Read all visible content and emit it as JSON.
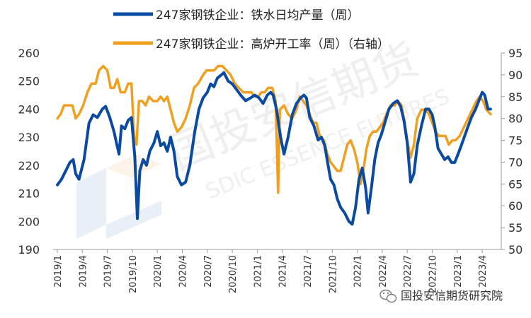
{
  "chart_data": {
    "type": "line",
    "title": "",
    "xlabel": "",
    "ylabel_left": "",
    "ylabel_right": "",
    "ylim_left": [
      190,
      260
    ],
    "ylim_right": [
      50,
      95
    ],
    "yticks_left": [
      "190",
      "200",
      "210",
      "220",
      "230",
      "240",
      "250",
      "260"
    ],
    "yticks_right": [
      "50",
      "55",
      "60",
      "65",
      "70",
      "75",
      "80",
      "85",
      "90",
      "95"
    ],
    "x_tick_labels": [
      "2019/1",
      "2019/4",
      "2019/7",
      "2019/10",
      "2020/1",
      "2020/4",
      "2020/7",
      "2020/10",
      "2021/1",
      "2021/4",
      "2021/7",
      "2021/10",
      "2022/1",
      "2022/4",
      "2022/7",
      "2022/10",
      "2023/1",
      "2023/4"
    ],
    "grid": false,
    "legend_position": "top",
    "series": [
      {
        "name": "247家钢铁企业：铁水日均产量（周）",
        "axis": "left",
        "color": "#0a4aa0",
        "points": [
          [
            0,
            213
          ],
          [
            0.5,
            215
          ],
          [
            1,
            218
          ],
          [
            1.5,
            221
          ],
          [
            1.9,
            222
          ],
          [
            2.2,
            217
          ],
          [
            2.6,
            215
          ],
          [
            3.2,
            222
          ],
          [
            3.8,
            235
          ],
          [
            4.3,
            238
          ],
          [
            4.8,
            237
          ],
          [
            5.4,
            240
          ],
          [
            5.8,
            241
          ],
          [
            6.3,
            237
          ],
          [
            6.8,
            232
          ],
          [
            7.1,
            228
          ],
          [
            7.4,
            224
          ],
          [
            7.7,
            234
          ],
          [
            8.1,
            233
          ],
          [
            8.5,
            236
          ],
          [
            8.9,
            237
          ],
          [
            9.3,
            223
          ],
          [
            9.6,
            201
          ],
          [
            9.9,
            218
          ],
          [
            10.3,
            222
          ],
          [
            10.7,
            220
          ],
          [
            11.1,
            225
          ],
          [
            11.6,
            228
          ],
          [
            12,
            232
          ],
          [
            12.4,
            227
          ],
          [
            12.8,
            228
          ],
          [
            13.2,
            225
          ],
          [
            13.6,
            230
          ],
          [
            14,
            225
          ],
          [
            14.4,
            216
          ],
          [
            14.9,
            213
          ],
          [
            15.4,
            214
          ],
          [
            15.9,
            220
          ],
          [
            16.5,
            232
          ],
          [
            17,
            240
          ],
          [
            17.5,
            244
          ],
          [
            18,
            246
          ],
          [
            18.4,
            249
          ],
          [
            18.8,
            248
          ],
          [
            19.2,
            251
          ],
          [
            19.6,
            252
          ],
          [
            20,
            253
          ],
          [
            20.5,
            250
          ],
          [
            21,
            249
          ],
          [
            21.5,
            247
          ],
          [
            22,
            245
          ],
          [
            22.6,
            243
          ],
          [
            23.2,
            244
          ],
          [
            23.7,
            245
          ],
          [
            24.2,
            244
          ],
          [
            24.7,
            242
          ],
          [
            25.2,
            245
          ],
          [
            25.6,
            246
          ],
          [
            25.9,
            245
          ],
          [
            26.3,
            240
          ],
          [
            26.8,
            230
          ],
          [
            27.2,
            224
          ],
          [
            27.7,
            230
          ],
          [
            28.2,
            238
          ],
          [
            28.7,
            242
          ],
          [
            29.2,
            244
          ],
          [
            29.6,
            245
          ],
          [
            29.9,
            244
          ],
          [
            30.3,
            237
          ],
          [
            30.8,
            234
          ],
          [
            31.3,
            229
          ],
          [
            31.7,
            230
          ],
          [
            32.1,
            227
          ],
          [
            32.5,
            220
          ],
          [
            32.8,
            215
          ],
          [
            33.2,
            213
          ],
          [
            33.6,
            208
          ],
          [
            34,
            205
          ],
          [
            34.5,
            203
          ],
          [
            35,
            200
          ],
          [
            35.4,
            199
          ],
          [
            35.8,
            205
          ],
          [
            36.2,
            215
          ],
          [
            36.6,
            219
          ],
          [
            37,
            212
          ],
          [
            37.3,
            203
          ],
          [
            37.7,
            212
          ],
          [
            38.1,
            222
          ],
          [
            38.5,
            228
          ],
          [
            38.9,
            231
          ],
          [
            39.3,
            235
          ],
          [
            39.8,
            240
          ],
          [
            40.3,
            242
          ],
          [
            40.8,
            243
          ],
          [
            41.2,
            241
          ],
          [
            41.6,
            236
          ],
          [
            42,
            228
          ],
          [
            42.4,
            214
          ],
          [
            42.8,
            217
          ],
          [
            43.2,
            227
          ],
          [
            43.7,
            234
          ],
          [
            44.2,
            240
          ],
          [
            44.6,
            240
          ],
          [
            45,
            238
          ],
          [
            45.3,
            234
          ],
          [
            45.7,
            226
          ],
          [
            46.1,
            224
          ],
          [
            46.5,
            222
          ],
          [
            46.9,
            223
          ],
          [
            47.3,
            221
          ],
          [
            47.7,
            221
          ],
          [
            48.1,
            224
          ],
          [
            48.6,
            228
          ],
          [
            49.2,
            233
          ],
          [
            49.7,
            237
          ],
          [
            50.2,
            240
          ],
          [
            50.6,
            243
          ],
          [
            51,
            246
          ],
          [
            51.3,
            245
          ],
          [
            51.7,
            240
          ],
          [
            52,
            240
          ]
        ]
      },
      {
        "name": "247家钢铁企业：高炉开工率（周）（右轴）",
        "axis": "right",
        "color": "#f0a020",
        "points": [
          [
            0,
            80
          ],
          [
            0.4,
            81
          ],
          [
            0.8,
            83
          ],
          [
            1.3,
            83
          ],
          [
            1.8,
            83
          ],
          [
            2.2,
            80
          ],
          [
            2.6,
            81
          ],
          [
            3.1,
            83
          ],
          [
            3.6,
            86
          ],
          [
            4.1,
            88
          ],
          [
            4.6,
            88
          ],
          [
            5,
            91
          ],
          [
            5.5,
            92
          ],
          [
            6,
            91
          ],
          [
            6.4,
            87
          ],
          [
            6.8,
            87
          ],
          [
            7.2,
            89
          ],
          [
            7.6,
            86
          ],
          [
            8.1,
            86
          ],
          [
            8.5,
            88
          ],
          [
            8.9,
            88
          ],
          [
            9.2,
            76
          ],
          [
            9.5,
            74
          ],
          [
            9.8,
            84
          ],
          [
            10.2,
            84
          ],
          [
            10.6,
            83
          ],
          [
            11,
            85
          ],
          [
            11.5,
            84
          ],
          [
            12,
            84
          ],
          [
            12.4,
            85
          ],
          [
            12.8,
            84
          ],
          [
            13.2,
            85
          ],
          [
            13.6,
            82
          ],
          [
            14,
            79
          ],
          [
            14.4,
            77
          ],
          [
            14.9,
            78
          ],
          [
            15.4,
            80
          ],
          [
            15.9,
            83
          ],
          [
            16.4,
            87
          ],
          [
            16.9,
            88
          ],
          [
            17.5,
            90
          ],
          [
            17.9,
            91
          ],
          [
            18.4,
            91
          ],
          [
            18.8,
            91
          ],
          [
            19.3,
            92
          ],
          [
            19.8,
            92
          ],
          [
            20.3,
            91
          ],
          [
            20.8,
            90
          ],
          [
            21.3,
            88
          ],
          [
            21.8,
            87
          ],
          [
            22.3,
            86
          ],
          [
            22.8,
            86
          ],
          [
            23.3,
            86
          ],
          [
            23.7,
            85
          ],
          [
            24.1,
            85
          ],
          [
            24.5,
            86
          ],
          [
            24.9,
            86
          ],
          [
            25.3,
            87
          ],
          [
            25.8,
            87
          ],
          [
            26.2,
            84
          ],
          [
            26.5,
            63
          ],
          [
            26.7,
            82
          ],
          [
            27.2,
            83
          ],
          [
            27.7,
            81
          ],
          [
            28.2,
            80
          ],
          [
            28.7,
            82
          ],
          [
            29.1,
            85
          ],
          [
            29.5,
            84
          ],
          [
            29.9,
            83
          ],
          [
            30.3,
            81
          ],
          [
            30.7,
            79
          ],
          [
            31.1,
            79
          ],
          [
            31.5,
            76
          ],
          [
            32,
            75
          ],
          [
            32.4,
            72
          ],
          [
            32.8,
            70
          ],
          [
            33.2,
            69
          ],
          [
            33.6,
            68
          ],
          [
            34,
            68
          ],
          [
            34.4,
            71
          ],
          [
            34.8,
            74
          ],
          [
            35.2,
            75
          ],
          [
            35.6,
            73
          ],
          [
            36,
            70
          ],
          [
            36.4,
            65
          ],
          [
            36.8,
            69
          ],
          [
            37.1,
            73
          ],
          [
            37.5,
            76
          ],
          [
            37.9,
            77
          ],
          [
            38.3,
            77
          ],
          [
            38.7,
            78
          ],
          [
            39.1,
            79
          ],
          [
            39.5,
            81
          ],
          [
            40,
            83
          ],
          [
            40.5,
            83
          ],
          [
            40.9,
            84
          ],
          [
            41.3,
            83
          ],
          [
            41.7,
            79
          ],
          [
            42,
            75
          ],
          [
            42.4,
            71
          ],
          [
            42.8,
            74
          ],
          [
            43.2,
            80
          ],
          [
            43.7,
            82
          ],
          [
            44.2,
            82
          ],
          [
            44.6,
            81
          ],
          [
            45,
            79
          ],
          [
            45.4,
            77
          ],
          [
            45.8,
            76
          ],
          [
            46.2,
            76
          ],
          [
            46.6,
            76
          ],
          [
            47,
            74
          ],
          [
            47.4,
            75
          ],
          [
            47.8,
            75
          ],
          [
            48.3,
            76
          ],
          [
            48.8,
            78
          ],
          [
            49.3,
            80
          ],
          [
            49.8,
            82
          ],
          [
            50.3,
            84
          ],
          [
            50.7,
            85
          ],
          [
            51.1,
            84
          ],
          [
            51.5,
            82
          ],
          [
            52,
            81
          ]
        ]
      }
    ]
  },
  "watermark": {
    "cn": "国投安信期货",
    "en": "SDIC ESSENCE FUTURES"
  },
  "footer": {
    "source_label": "国投安信期货研究院",
    "icon": "wechat-icon"
  }
}
